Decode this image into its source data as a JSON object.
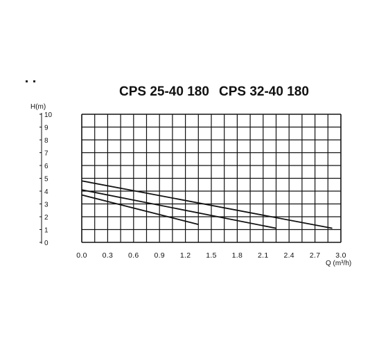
{
  "chart_data": {
    "type": "line",
    "title_left": "CPS 25-40 180",
    "title_right": "CPS 32-40 180",
    "ylabel": "H(m)",
    "xlabel": "Q (m³/h)",
    "xlim": [
      0,
      3.0
    ],
    "ylim": [
      0,
      10
    ],
    "x_ticks": [
      "0.0",
      "0.3",
      "0.6",
      "0.9",
      "1.2",
      "1.5",
      "1.8",
      "2.1",
      "2.4",
      "2.7",
      "3.0"
    ],
    "x_tick_values": [
      0.0,
      0.3,
      0.6,
      0.9,
      1.2,
      1.5,
      1.8,
      2.1,
      2.4,
      2.7,
      3.0
    ],
    "y_ticks": [
      "0",
      "1",
      "2",
      "3",
      "4",
      "5",
      "6",
      "7",
      "8",
      "9",
      "10"
    ],
    "y_tick_values": [
      0,
      1,
      2,
      3,
      4,
      5,
      6,
      7,
      8,
      9,
      10
    ],
    "grid": true,
    "series": [
      {
        "x": [
          0.0,
          1.35
        ],
        "y": [
          3.7,
          1.4
        ]
      },
      {
        "x": [
          0.0,
          2.25
        ],
        "y": [
          4.1,
          1.1
        ]
      },
      {
        "x": [
          0.0,
          2.9
        ],
        "y": [
          4.8,
          1.1
        ]
      }
    ]
  }
}
